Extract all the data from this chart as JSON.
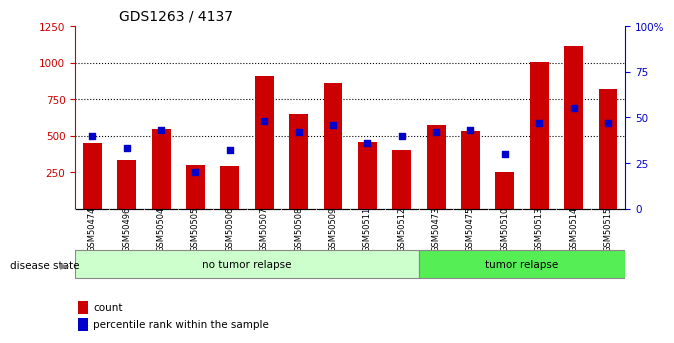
{
  "title": "GDS1263 / 4137",
  "categories": [
    "GSM50474",
    "GSM50496",
    "GSM50504",
    "GSM50505",
    "GSM50506",
    "GSM50507",
    "GSM50508",
    "GSM50509",
    "GSM50511",
    "GSM50512",
    "GSM50473",
    "GSM50475",
    "GSM50510",
    "GSM50513",
    "GSM50514",
    "GSM50515"
  ],
  "bar_values": [
    450,
    335,
    545,
    300,
    290,
    910,
    650,
    860,
    455,
    400,
    570,
    530,
    250,
    1005,
    1110,
    820
  ],
  "dot_values": [
    40,
    33,
    43,
    20,
    32,
    48,
    42,
    46,
    36,
    40,
    42,
    43,
    30,
    47,
    55,
    47
  ],
  "no_tumor_count": 10,
  "tumor_count": 6,
  "bar_color": "#cc0000",
  "dot_color": "#0000cc",
  "ylim_left": [
    0,
    1250
  ],
  "ylim_right": [
    0,
    100
  ],
  "yticks_left": [
    250,
    500,
    750,
    1000,
    1250
  ],
  "yticks_right": [
    0,
    25,
    50,
    75,
    100
  ],
  "grid_values": [
    500,
    750,
    1000
  ],
  "no_tumor_color": "#ccffcc",
  "tumor_color": "#55ee55",
  "label_bg_color": "#cccccc",
  "legend_count_label": "count",
  "legend_pct_label": "percentile rank within the sample",
  "disease_state_label": "disease state",
  "no_tumor_label": "no tumor relapse",
  "tumor_label": "tumor relapse"
}
